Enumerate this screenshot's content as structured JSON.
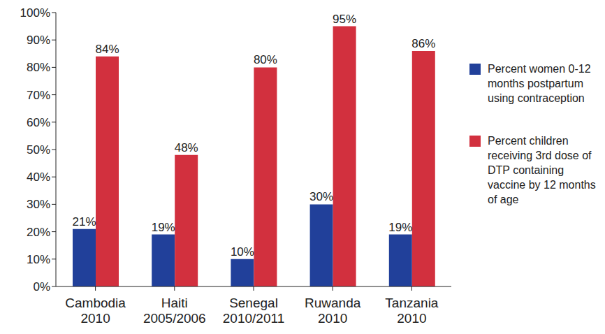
{
  "chart_data": {
    "type": "bar",
    "categories": [
      "Cambodia\n2010",
      "Haiti\n2005/2006",
      "Senegal\n2010/2011",
      "Ruwanda\n2010",
      "Tanzania\n2010"
    ],
    "series": [
      {
        "name": "Percent women 0-12 months postpartum using contraception",
        "color": "#21409a",
        "values": [
          21,
          19,
          10,
          30,
          19
        ],
        "value_labels": [
          "21%",
          "19%",
          "10%",
          "30%",
          "19%"
        ]
      },
      {
        "name": "Percent children receiving 3rd dose of DTP containing vaccine by 12 months of age",
        "color": "#d2303e",
        "values": [
          84,
          48,
          80,
          95,
          86
        ],
        "value_labels": [
          "84%",
          "48%",
          "80%",
          "95%",
          "86%"
        ]
      }
    ],
    "ylim": [
      0,
      100
    ],
    "yticks": [
      {
        "value": 0,
        "label": "0%"
      },
      {
        "value": 10,
        "label": "10%"
      },
      {
        "value": 20,
        "label": "20%"
      },
      {
        "value": 30,
        "label": "30%"
      },
      {
        "value": 40,
        "label": "40%"
      },
      {
        "value": 50,
        "label": "50%"
      },
      {
        "value": 60,
        "label": "60%"
      },
      {
        "value": 70,
        "label": "70%"
      },
      {
        "value": 80,
        "label": "80%"
      },
      {
        "value": 90,
        "label": "90%"
      },
      {
        "value": 100,
        "label": "100%"
      }
    ],
    "grid": false,
    "legend": "right",
    "data_labels": true
  }
}
